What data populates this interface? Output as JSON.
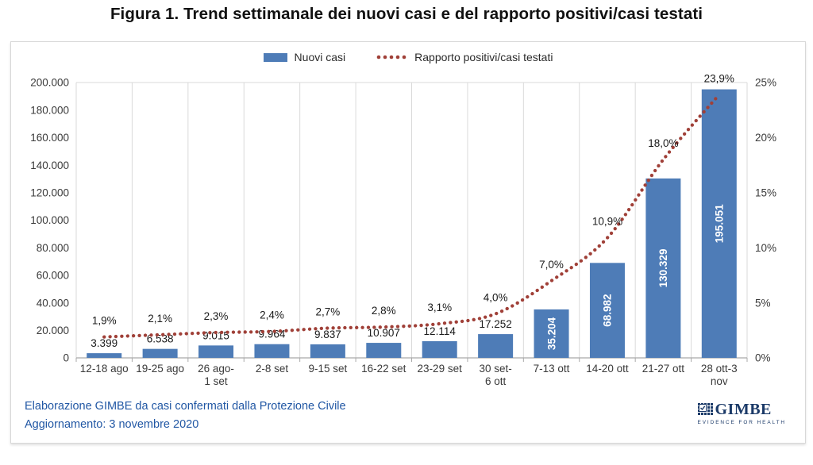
{
  "title": "Figura 1. Trend settimanale dei nuovi casi e del rapporto positivi/casi testati",
  "legend": {
    "bars": "Nuovi casi",
    "line": "Rapporto positivi/casi testati"
  },
  "footer": {
    "line1": "Elaborazione GIMBE da casi confermati dalla Protezione Civile",
    "line2": "Aggiornamento: 3 novembre 2020"
  },
  "logo": {
    "name": "GIMBE",
    "tagline": "EVIDENCE FOR HEALTH"
  },
  "colors": {
    "bar": "#4E7CB7",
    "line": "#A04038",
    "grid": "#DADADA",
    "axis": "#A9A9A9",
    "tick_text": "#3A3A3A",
    "bar_label": "#1A1A1A",
    "inside_label": "#FFFFFF",
    "footer_text": "#2157A4",
    "logo": "#1B3A68"
  },
  "chart_data": {
    "type": "bar+line combo",
    "title": "Figura 1. Trend settimanale dei nuovi casi e del rapporto positivi/casi testati",
    "legend_position": "top-center",
    "grid": "vertical-only",
    "categories": [
      "12-18 ago",
      "19-25 ago",
      "26 ago-\n1 set",
      "2-8 set",
      "9-15 set",
      "16-22 set",
      "23-29 set",
      "30 set-\n6 ott",
      "7-13 ott",
      "14-20 ott",
      "21-27 ott",
      "28 ott-3\nnov"
    ],
    "series": [
      {
        "name": "Nuovi casi",
        "type": "bar",
        "axis": "left",
        "values": [
          3399,
          6538,
          9015,
          9964,
          9837,
          10907,
          12114,
          17252,
          35204,
          68982,
          130329,
          195051
        ],
        "labels": [
          "3.399",
          "6.538",
          "9.015",
          "9.964",
          "9.837",
          "10.907",
          "12.114",
          "17.252",
          "35.204",
          "68.982",
          "130.329",
          "195.051"
        ]
      },
      {
        "name": "Rapporto positivi/casi testati",
        "type": "dotted-line",
        "axis": "right",
        "values": [
          1.9,
          2.1,
          2.3,
          2.4,
          2.7,
          2.8,
          3.1,
          4.0,
          7.0,
          10.9,
          18.0,
          23.9
        ],
        "labels": [
          "1,9%",
          "2,1%",
          "2,3%",
          "2,4%",
          "2,7%",
          "2,8%",
          "3,1%",
          "4,0%",
          "7,0%",
          "10,9%",
          "18,0%",
          "23,9%"
        ]
      }
    ],
    "left_axis": {
      "min": 0,
      "max": 200000,
      "step": 20000,
      "tick_labels": [
        "200.000",
        "180.000",
        "160.000",
        "140.000",
        "120.000",
        "100.000",
        "80.000",
        "60.000",
        "40.000",
        "20.000",
        "0"
      ]
    },
    "right_axis": {
      "min": 0,
      "max": 25,
      "step": 5,
      "tick_labels": [
        "25%",
        "20%",
        "15%",
        "10%",
        "5%",
        "0%"
      ]
    }
  }
}
